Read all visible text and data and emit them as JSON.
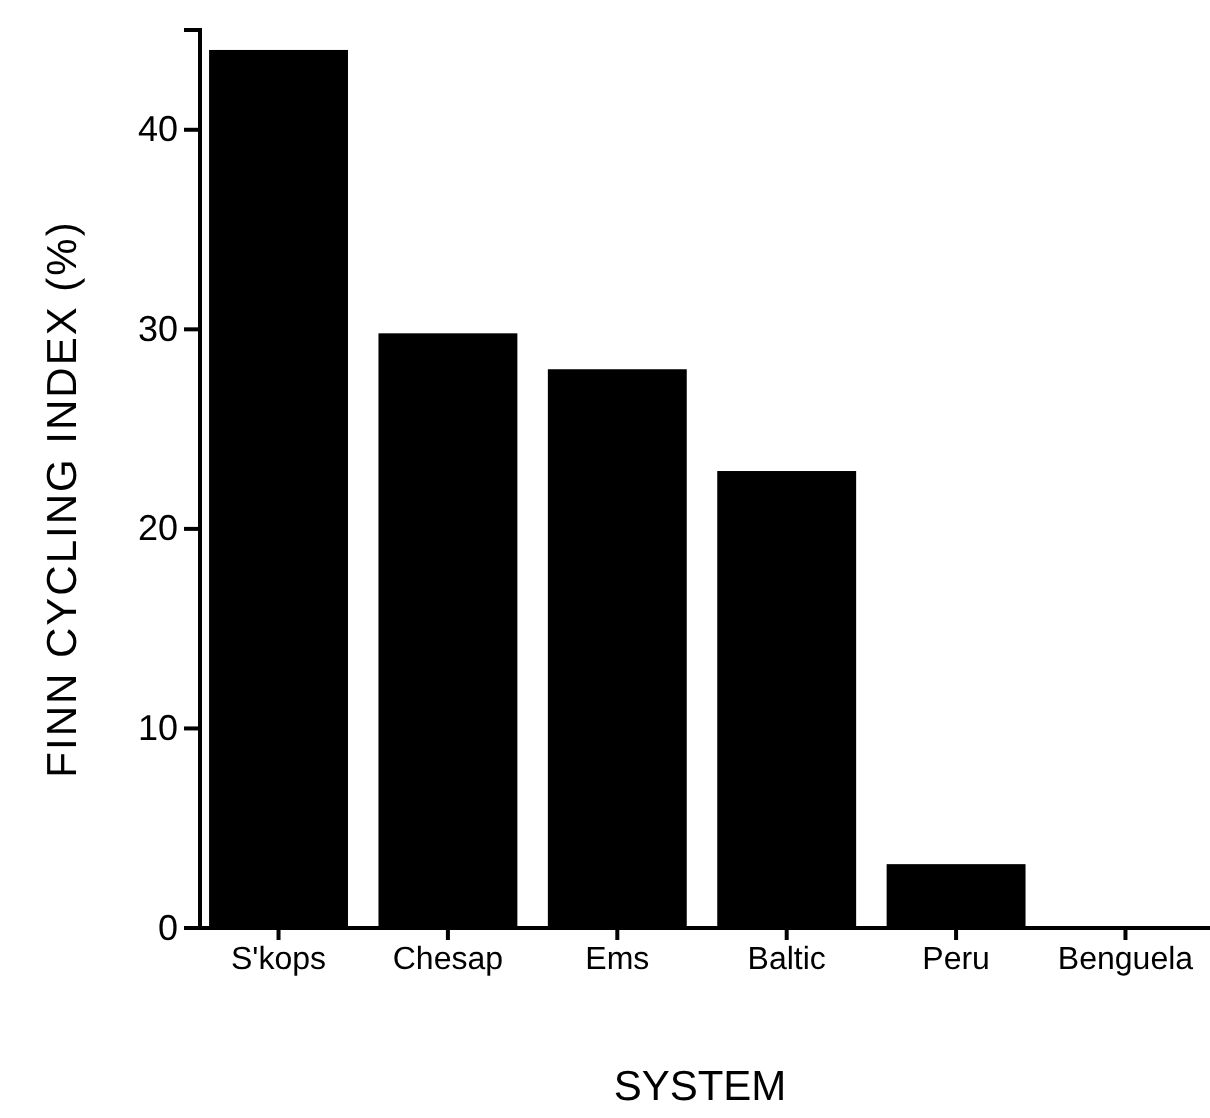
{
  "chart_data": {
    "type": "bar",
    "xlabel": "SYSTEM",
    "ylabel": "FINN CYCLING INDEX (%)",
    "categories": [
      "S'kops",
      "Chesap",
      "Ems",
      "Baltic",
      "Peru",
      "Benguela"
    ],
    "values": [
      44,
      29.8,
      28,
      22.9,
      3.2,
      0
    ],
    "color": "#000000",
    "ylim": [
      0,
      45
    ],
    "yticks": [
      0,
      10,
      20,
      30,
      40
    ]
  }
}
